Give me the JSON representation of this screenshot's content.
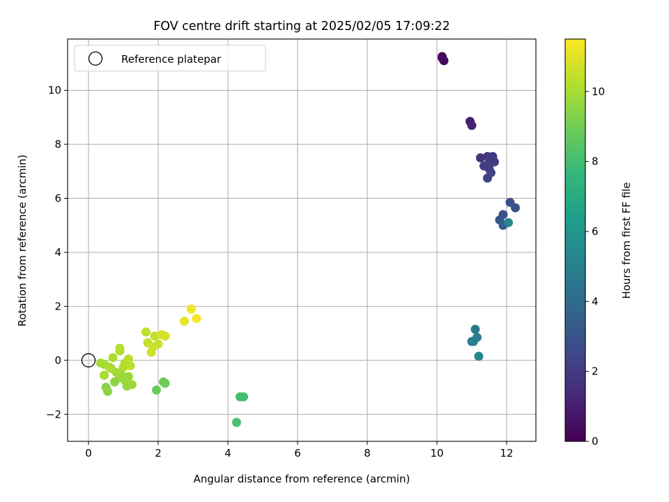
{
  "chart_data": {
    "type": "scatter",
    "title": "FOV centre drift starting at 2025/02/05 17:09:22",
    "xlabel": "Angular distance from reference (arcmin)",
    "ylabel": "Rotation from reference (arcmin)",
    "xlim": [
      -0.6,
      12.84
    ],
    "ylim": [
      -3.0,
      11.9
    ],
    "xticks": [
      0,
      2,
      4,
      6,
      8,
      10,
      12
    ],
    "yticks": [
      -2,
      0,
      2,
      4,
      6,
      8,
      10
    ],
    "grid": true,
    "legend": {
      "placement": "top-left",
      "entries": [
        "Reference platepar"
      ]
    },
    "reference_point": {
      "x": 0,
      "y": 0
    },
    "colorbar": {
      "label": "Hours from first FF file",
      "range": [
        0,
        11.5
      ],
      "ticks": [
        0,
        2,
        4,
        6,
        8,
        10
      ],
      "colormap": "viridis"
    },
    "points": [
      {
        "x": 10.15,
        "y": 11.25,
        "c": 0.1
      },
      {
        "x": 10.2,
        "y": 11.1,
        "c": 0.2
      },
      {
        "x": 10.15,
        "y": 11.2,
        "c": 0.3
      },
      {
        "x": 10.95,
        "y": 8.85,
        "c": 1.0
      },
      {
        "x": 11.0,
        "y": 8.7,
        "c": 1.1
      },
      {
        "x": 11.25,
        "y": 7.5,
        "c": 1.7
      },
      {
        "x": 11.45,
        "y": 7.55,
        "c": 1.8
      },
      {
        "x": 11.6,
        "y": 7.55,
        "c": 1.9
      },
      {
        "x": 11.5,
        "y": 7.35,
        "c": 2.0
      },
      {
        "x": 11.65,
        "y": 7.35,
        "c": 2.0
      },
      {
        "x": 11.35,
        "y": 7.2,
        "c": 2.1
      },
      {
        "x": 11.5,
        "y": 7.1,
        "c": 2.1
      },
      {
        "x": 11.55,
        "y": 6.95,
        "c": 2.2
      },
      {
        "x": 11.45,
        "y": 6.75,
        "c": 2.3
      },
      {
        "x": 12.1,
        "y": 5.85,
        "c": 2.8
      },
      {
        "x": 12.25,
        "y": 5.65,
        "c": 3.0
      },
      {
        "x": 11.9,
        "y": 5.4,
        "c": 3.0
      },
      {
        "x": 11.8,
        "y": 5.2,
        "c": 3.1
      },
      {
        "x": 11.9,
        "y": 5.0,
        "c": 3.2
      },
      {
        "x": 12.05,
        "y": 5.1,
        "c": 5.2
      },
      {
        "x": 11.1,
        "y": 1.15,
        "c": 4.8
      },
      {
        "x": 11.15,
        "y": 0.85,
        "c": 4.9
      },
      {
        "x": 11.05,
        "y": 0.7,
        "c": 5.0
      },
      {
        "x": 11.0,
        "y": 0.7,
        "c": 4.9
      },
      {
        "x": 11.2,
        "y": 0.15,
        "c": 5.3
      },
      {
        "x": 4.25,
        "y": -2.3,
        "c": 8.2
      },
      {
        "x": 4.35,
        "y": -1.35,
        "c": 8.1
      },
      {
        "x": 4.45,
        "y": -1.35,
        "c": 8.0
      },
      {
        "x": 1.95,
        "y": -1.1,
        "c": 8.8
      },
      {
        "x": 2.15,
        "y": -0.8,
        "c": 8.9
      },
      {
        "x": 2.2,
        "y": -0.85,
        "c": 8.9
      },
      {
        "x": 0.5,
        "y": -1.0,
        "c": 9.4
      },
      {
        "x": 0.55,
        "y": -1.15,
        "c": 9.5
      },
      {
        "x": 0.75,
        "y": -0.8,
        "c": 9.5
      },
      {
        "x": 0.9,
        "y": -0.65,
        "c": 9.6
      },
      {
        "x": 1.05,
        "y": -0.75,
        "c": 9.7
      },
      {
        "x": 1.1,
        "y": -0.95,
        "c": 9.7
      },
      {
        "x": 1.25,
        "y": -0.9,
        "c": 9.8
      },
      {
        "x": 1.15,
        "y": -0.6,
        "c": 9.8
      },
      {
        "x": 0.95,
        "y": -0.55,
        "c": 9.8
      },
      {
        "x": 0.8,
        "y": -0.45,
        "c": 9.9
      },
      {
        "x": 0.65,
        "y": -0.3,
        "c": 9.9
      },
      {
        "x": 0.45,
        "y": -0.55,
        "c": 10.0
      },
      {
        "x": 0.35,
        "y": -0.1,
        "c": 10.0
      },
      {
        "x": 0.45,
        "y": -0.15,
        "c": 10.0
      },
      {
        "x": 0.6,
        "y": -0.25,
        "c": 10.1
      },
      {
        "x": 0.7,
        "y": 0.1,
        "c": 10.1
      },
      {
        "x": 0.9,
        "y": 0.45,
        "c": 10.2
      },
      {
        "x": 0.9,
        "y": 0.35,
        "c": 10.2
      },
      {
        "x": 1.0,
        "y": -0.25,
        "c": 10.2
      },
      {
        "x": 1.05,
        "y": -0.1,
        "c": 10.2
      },
      {
        "x": 1.15,
        "y": 0.05,
        "c": 10.3
      },
      {
        "x": 1.2,
        "y": -0.2,
        "c": 10.3
      },
      {
        "x": 1.65,
        "y": 1.05,
        "c": 10.4
      },
      {
        "x": 1.7,
        "y": 0.65,
        "c": 10.5
      },
      {
        "x": 1.9,
        "y": 0.9,
        "c": 10.5
      },
      {
        "x": 1.85,
        "y": 0.5,
        "c": 10.6
      },
      {
        "x": 1.8,
        "y": 0.3,
        "c": 10.7
      },
      {
        "x": 2.0,
        "y": 0.6,
        "c": 10.6
      },
      {
        "x": 2.1,
        "y": 0.95,
        "c": 10.7
      },
      {
        "x": 2.2,
        "y": 0.9,
        "c": 10.8
      },
      {
        "x": 2.75,
        "y": 1.45,
        "c": 11.1
      },
      {
        "x": 2.95,
        "y": 1.9,
        "c": 11.3
      },
      {
        "x": 3.1,
        "y": 1.55,
        "c": 11.4
      }
    ]
  }
}
